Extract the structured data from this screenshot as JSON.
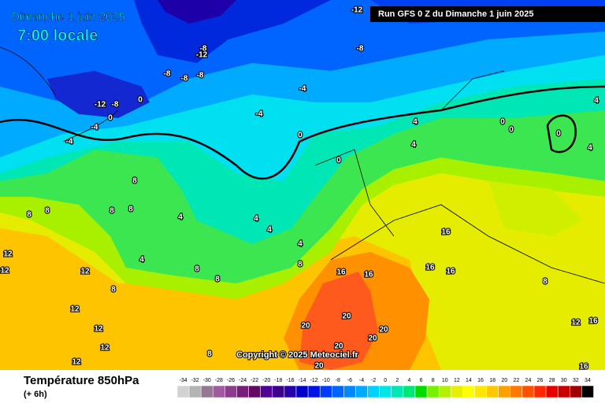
{
  "header": {
    "date": "Dimanche 1 juin 2025",
    "time": "7:00 locale",
    "run": "Run GFS 0 Z du Dimanche 1 juin 2025"
  },
  "map": {
    "contour_labels": [
      "-12",
      "-8",
      "-8",
      "-12",
      "-8",
      "-8",
      "-8",
      "-12",
      "-8",
      "0",
      "-4",
      "0",
      "-4",
      "-4",
      "-4",
      "0",
      "4",
      "4",
      "0",
      "0",
      "0",
      "0",
      "4",
      "4",
      "8",
      "8",
      "8",
      "8",
      "8",
      "4",
      "4",
      "4",
      "4",
      "4",
      "12",
      "12",
      "12",
      "8",
      "8",
      "8",
      "8",
      "12",
      "12",
      "12",
      "12",
      "8",
      "16",
      "16",
      "16",
      "16",
      "16",
      "20",
      "20",
      "20",
      "20",
      "20",
      "20",
      "12",
      "16",
      "16",
      "8"
    ],
    "copyright": "Copyright © 2025 Meteociel.fr"
  },
  "legend": {
    "title": "Température 850hPa",
    "subtitle": "(+ 6h)",
    "ticks": [
      -34,
      -32,
      -30,
      -28,
      -26,
      -24,
      -22,
      -20,
      -18,
      -16,
      -14,
      -12,
      -10,
      -8,
      -6,
      -4,
      -2,
      0,
      2,
      4,
      6,
      8,
      10,
      12,
      14,
      16,
      18,
      20,
      22,
      24,
      26,
      28,
      30,
      32,
      34
    ],
    "colors": [
      "#d2d2d2",
      "#b4b4b4",
      "#967896",
      "#a05aa0",
      "#8c3c8c",
      "#781e78",
      "#640a64",
      "#500096",
      "#3c008c",
      "#2800a8",
      "#0000c8",
      "#0014e6",
      "#003cff",
      "#0064ff",
      "#0088ff",
      "#00aaff",
      "#00d2ff",
      "#00e6e6",
      "#00e6b4",
      "#00e678",
      "#00dc00",
      "#78f000",
      "#b4f000",
      "#e6f000",
      "#ffff00",
      "#ffe600",
      "#ffc800",
      "#ffa000",
      "#ff7800",
      "#ff5000",
      "#ff2800",
      "#e60000",
      "#c80000",
      "#a00000",
      "#000000"
    ]
  }
}
